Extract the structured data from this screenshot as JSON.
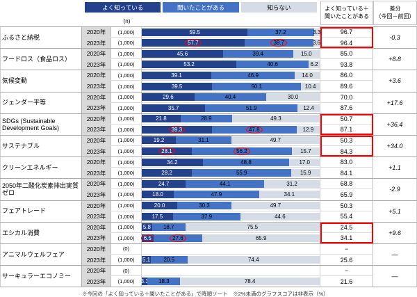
{
  "header": {
    "n_label": "(n)",
    "total_label_line1": "よく知っている＋",
    "total_label_line2": "聞いたことがある",
    "diff_label_line1": "差分",
    "diff_label_line2": "（今回－前回）"
  },
  "legend": {
    "items": [
      {
        "label": "よく知っている",
        "color": "#24418c",
        "text_color": "#ffffff"
      },
      {
        "label": "聞いたことがある",
        "color": "#4472c4",
        "text_color": "#ffffff"
      },
      {
        "label": "知らない",
        "color": "#d6dce5",
        "text_color": "#000000"
      }
    ]
  },
  "colors": {
    "known_well": "#24418c",
    "heard_of": "#4472c4",
    "unknown": "#d6dce5",
    "highlight": "#ff0000",
    "year_bg": "#d9d9d9"
  },
  "footer": {
    "note": "※今回の「よく知っている＋聞いたことがある」で降順ソート　※2%未満のグラフスコアは非表示（%）"
  },
  "chart_data": {
    "type": "bar",
    "orientation": "horizontal",
    "stacked": true,
    "unit": "%",
    "xlim": [
      0,
      100
    ],
    "series_names": [
      "よく知っている",
      "聞いたことがある",
      "知らない"
    ],
    "groups": [
      {
        "category": "ふるさと納税",
        "diff": "-0.3",
        "total_boxed": true,
        "rows": [
          {
            "year": "2020年",
            "n": "(1,000)",
            "values": [
              59.5,
              37.2,
              3.3
            ],
            "circled": [],
            "total": "96.7"
          },
          {
            "year": "2023年",
            "n": "(1,000)",
            "values": [
              57.7,
              38.7,
              3.6
            ],
            "circled": [
              0,
              1
            ],
            "total": "96.4"
          }
        ]
      },
      {
        "category": "フードロス（食品ロス）",
        "diff": "+8.8",
        "total_boxed": false,
        "rows": [
          {
            "year": "2020年",
            "n": "(1,000)",
            "values": [
              45.6,
              39.4,
              15.0
            ],
            "circled": [],
            "total": "85.0"
          },
          {
            "year": "2023年",
            "n": "(1,000)",
            "values": [
              53.2,
              40.6,
              6.2
            ],
            "circled": [],
            "total": "93.8"
          }
        ]
      },
      {
        "category": "気候変動",
        "diff": "+3.6",
        "total_boxed": false,
        "rows": [
          {
            "year": "2020年",
            "n": "(1,000)",
            "values": [
              39.1,
              46.9,
              14.0
            ],
            "circled": [],
            "total": "86.0"
          },
          {
            "year": "2023年",
            "n": "(1,000)",
            "values": [
              39.5,
              50.1,
              10.4
            ],
            "circled": [],
            "total": "89.6"
          }
        ]
      },
      {
        "category": "ジェンダー平等",
        "diff": "+17.6",
        "total_boxed": false,
        "rows": [
          {
            "year": "2020年",
            "n": "(1,000)",
            "values": [
              29.6,
              40.4,
              30.0
            ],
            "circled": [],
            "total": "70.0"
          },
          {
            "year": "2023年",
            "n": "(1,000)",
            "values": [
              35.7,
              51.9,
              12.4
            ],
            "circled": [],
            "total": "87.6"
          }
        ]
      },
      {
        "category": "SDGs (Sustainable Development Goals)",
        "diff": "+36.4",
        "total_boxed": true,
        "rows": [
          {
            "year": "2020年",
            "n": "(1,000)",
            "values": [
              21.8,
              28.9,
              49.3
            ],
            "circled": [],
            "total": "50.7"
          },
          {
            "year": "2023年",
            "n": "(1,000)",
            "values": [
              39.3,
              47.8,
              12.9
            ],
            "circled": [
              0,
              1
            ],
            "total": "87.1"
          }
        ]
      },
      {
        "category": "サステナブル",
        "diff": "+34.0",
        "total_boxed": true,
        "rows": [
          {
            "year": "2020年",
            "n": "(1,000)",
            "values": [
              19.2,
              31.1,
              49.7
            ],
            "circled": [],
            "total": "50.3"
          },
          {
            "year": "2023年",
            "n": "(1,000)",
            "values": [
              28.1,
              56.2,
              15.7
            ],
            "circled": [
              0,
              1
            ],
            "total": "84.3"
          }
        ]
      },
      {
        "category": "クリーンエネルギー",
        "diff": "+1.1",
        "total_boxed": false,
        "rows": [
          {
            "year": "2020年",
            "n": "(1,000)",
            "values": [
              34.2,
              48.8,
              17.0
            ],
            "circled": [],
            "total": "83.0"
          },
          {
            "year": "2023年",
            "n": "(1,000)",
            "values": [
              28.2,
              55.9,
              15.9
            ],
            "circled": [],
            "total": "84.1"
          }
        ]
      },
      {
        "category": "2050年二酸化炭素排出実質ゼロ",
        "diff": "-2.9",
        "total_boxed": false,
        "rows": [
          {
            "year": "2020年",
            "n": "(1,000)",
            "values": [
              24.7,
              44.1,
              31.2
            ],
            "circled": [],
            "total": "68.8"
          },
          {
            "year": "2023年",
            "n": "(1,000)",
            "values": [
              18.0,
              47.9,
              34.1
            ],
            "circled": [],
            "total": "65.9"
          }
        ]
      },
      {
        "category": "フェアトレード",
        "diff": "+5.1",
        "total_boxed": false,
        "rows": [
          {
            "year": "2020年",
            "n": "(1,000)",
            "values": [
              20.0,
              30.3,
              49.7
            ],
            "circled": [],
            "total": "50.3"
          },
          {
            "year": "2023年",
            "n": "(1,000)",
            "values": [
              17.5,
              37.9,
              44.6
            ],
            "circled": [],
            "total": "55.4"
          }
        ]
      },
      {
        "category": "エシカル消費",
        "diff": "+9.6",
        "total_boxed": true,
        "rows": [
          {
            "year": "2020年",
            "n": "(1,000)",
            "values": [
              5.8,
              18.7,
              75.5
            ],
            "circled": [],
            "total": "24.5"
          },
          {
            "year": "2023年",
            "n": "(1,000)",
            "values": [
              6.5,
              27.6,
              65.9
            ],
            "circled": [
              0,
              1
            ],
            "total": "34.1"
          }
        ]
      },
      {
        "category": "アニマルウェルフェア",
        "diff": "―",
        "total_boxed": false,
        "rows": [
          {
            "year": "2020年",
            "n": "(0)",
            "values": null,
            "circled": [],
            "total": "−"
          },
          {
            "year": "2023年",
            "n": "(1,000)",
            "values": [
              5.1,
              20.5,
              74.4
            ],
            "circled": [],
            "total": "25.6"
          }
        ]
      },
      {
        "category": "サーキュラーエコノミー",
        "diff": "―",
        "total_boxed": false,
        "rows": [
          {
            "year": "2020年",
            "n": "(0)",
            "values": null,
            "circled": [],
            "total": "21.6",
            "total_override_first": "−"
          },
          {
            "year": "2023年",
            "n": "(1,000)",
            "values": [
              3.3,
              18.3,
              78.4
            ],
            "circled": [],
            "total": "21.6"
          }
        ]
      }
    ]
  }
}
